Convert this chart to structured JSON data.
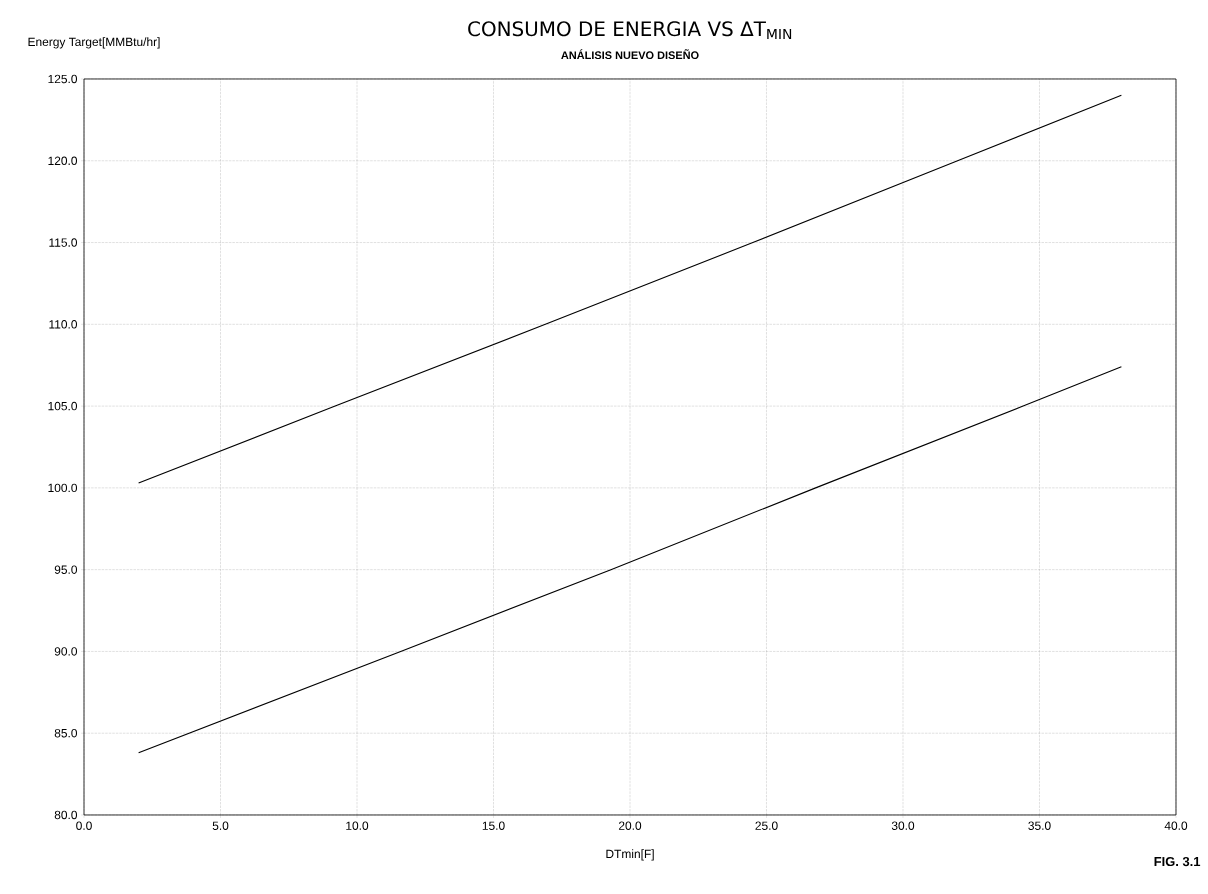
{
  "chart_data": {
    "type": "line",
    "title": "CONSUMO DE ENERGIA VS ΔT$_{MIN}$",
    "subtitle": "ANÁLISIS NUEVO DISEÑO",
    "xlabel": "DTmin[F]",
    "ylabel": "Energy Target[MMBtu/hr]",
    "annotations": [
      "FIG. 3.1"
    ],
    "series": [
      {
        "color": "#000000",
        "x": [
          2,
          9.2,
          16.9,
          24.5,
          32,
          38
        ],
        "values": [
          100.3,
          105,
          110,
          115,
          120,
          124.0
        ]
      },
      {
        "color": "#000000",
        "x": [
          2,
          11.6,
          19.3,
          26.8,
          34.4,
          38
        ],
        "values": [
          83.8,
          90,
          95,
          100,
          105,
          107.4
        ]
      }
    ],
    "xlim": [
      0,
      40
    ],
    "ylim": [
      80,
      125
    ],
    "xticks": [
      {
        "value": 0,
        "label": "0.0"
      },
      {
        "value": 5,
        "label": "5.0"
      },
      {
        "value": 10,
        "label": "10.0"
      },
      {
        "value": 15,
        "label": "15.0"
      },
      {
        "value": 20,
        "label": "20.0"
      },
      {
        "value": 25,
        "label": "25.0"
      },
      {
        "value": 30,
        "label": "30.0"
      },
      {
        "value": 35,
        "label": "35.0"
      },
      {
        "value": 40,
        "label": "40.0"
      }
    ],
    "yticks": [
      {
        "value": 80,
        "label": "80.0"
      },
      {
        "value": 85,
        "label": "85.0"
      },
      {
        "value": 90,
        "label": "90.0"
      },
      {
        "value": 95,
        "label": "95.0"
      },
      {
        "value": 100,
        "label": "100.0"
      },
      {
        "value": 105,
        "label": "105.0"
      },
      {
        "value": 110,
        "label": "110.0"
      },
      {
        "value": 115,
        "label": "115.0"
      },
      {
        "value": 120,
        "label": "120.0"
      },
      {
        "value": 125,
        "label": "125.0"
      }
    ],
    "grid": true,
    "legend": false,
    "marker": "none",
    "line_style": "solid"
  }
}
